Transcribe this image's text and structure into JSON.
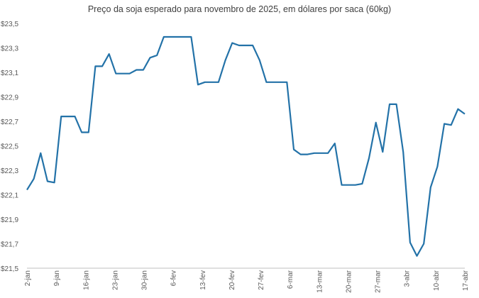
{
  "chart_data": {
    "type": "line",
    "title": "Preço da soja  esperado para novembro de 2025, em dólares por saca (60kg)",
    "xlabel": "",
    "ylabel": "",
    "ylim": [
      21.5,
      23.5
    ],
    "y_ticks": [
      "$23,5",
      "$23,3",
      "$23,1",
      "$22,9",
      "$22,7",
      "$22,5",
      "$22,3",
      "$22,1",
      "$21,9",
      "$21,7",
      "$21,5"
    ],
    "y_tick_values": [
      23.5,
      23.3,
      23.1,
      22.9,
      22.7,
      22.5,
      22.3,
      22.1,
      21.9,
      21.7,
      21.5
    ],
    "x_ticks": [
      "2-jan",
      "9-jan",
      "16-jan",
      "23-jan",
      "30-jan",
      "6-fev",
      "13-fev",
      "20-fev",
      "27-fev",
      "6-mar",
      "13-mar",
      "20-mar",
      "27-mar",
      "3-abr",
      "10-abr",
      "17-abr"
    ],
    "grid": false,
    "line_color": "#2372a8",
    "series": [
      {
        "values": [
          22.14,
          22.23,
          22.44,
          22.21,
          22.2,
          22.74,
          22.74,
          22.74,
          22.61,
          22.61,
          23.15,
          23.15,
          23.25,
          23.09,
          23.09,
          23.09,
          23.12,
          23.12,
          23.22,
          23.24,
          23.39,
          23.39,
          23.39,
          23.39,
          23.39,
          23.0,
          23.02,
          23.02,
          23.02,
          23.2,
          23.34,
          23.32,
          23.32,
          23.32,
          23.2,
          23.02,
          23.02,
          23.02,
          23.02,
          22.47,
          22.43,
          22.43,
          22.44,
          22.44,
          22.44,
          22.52,
          22.18,
          22.18,
          22.18,
          22.19,
          22.4,
          22.69,
          22.45,
          22.84,
          22.84,
          22.45,
          21.71,
          21.6,
          21.7,
          22.16,
          22.33,
          22.68,
          22.67,
          22.8,
          22.76
        ]
      }
    ]
  }
}
